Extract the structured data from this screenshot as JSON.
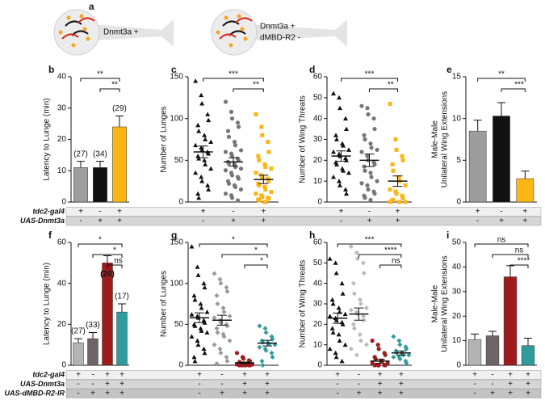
{
  "panel_a": {
    "label": "a",
    "cells": [
      {
        "lines": [
          "Dnmt3a +"
        ]
      },
      {
        "lines": [
          "Dnmt3a +",
          "dMBD-R2 -"
        ]
      }
    ]
  },
  "genotype_labels": [
    [
      "tdc2-gal4",
      "UAS-Dnmt3a"
    ],
    [
      "tdc2-gal4",
      "UAS-Dnmt3a",
      "UAS-dMBD-R2-IR"
    ]
  ],
  "chart_data": [
    {
      "panel": "b",
      "type": "bar",
      "ylabel": "Latency to Lunge (min)",
      "ylim": [
        0,
        40
      ],
      "yticks": [
        0,
        10,
        20,
        30,
        40
      ],
      "values": [
        11,
        11,
        24
      ],
      "errors": [
        2,
        2,
        3.5
      ],
      "colors": [
        "#9d9d9d",
        "#111111",
        "#fbb615"
      ],
      "n_labels": [
        "(27)",
        "(34)",
        "(29)"
      ],
      "comparisons": [
        {
          "pair": [
            0,
            2
          ],
          "label": "**"
        },
        {
          "pair": [
            1,
            2
          ],
          "label": "**"
        }
      ],
      "genotype": [
        [
          "+",
          "-",
          "+"
        ],
        [
          "-",
          "+",
          "+"
        ]
      ]
    },
    {
      "panel": "c",
      "type": "scatter",
      "ylabel": "Number of Lunges",
      "ylim": [
        0,
        150
      ],
      "yticks": [
        0,
        50,
        100,
        150
      ],
      "series": [
        {
          "marker": "triangle",
          "color": "#111111",
          "mean": 60,
          "sem": 7,
          "values": [
            145,
            128,
            118,
            105,
            98,
            92,
            85,
            80,
            75,
            72,
            68,
            65,
            62,
            60,
            58,
            55,
            52,
            50,
            45,
            40,
            35,
            30,
            25,
            20,
            15,
            10,
            5
          ]
        },
        {
          "marker": "circle",
          "color": "#777777",
          "mean": 48,
          "sem": 5,
          "values": [
            120,
            108,
            100,
            95,
            90,
            85,
            78,
            72,
            68,
            62,
            60,
            58,
            55,
            52,
            50,
            48,
            46,
            45,
            42,
            40,
            38,
            35,
            32,
            30,
            28,
            25,
            22,
            20,
            18,
            15,
            10,
            8,
            5,
            2
          ]
        },
        {
          "marker": "square",
          "color": "#fbb615",
          "mean": 27,
          "sem": 5,
          "values": [
            105,
            90,
            80,
            72,
            60,
            55,
            50,
            45,
            42,
            40,
            35,
            32,
            30,
            28,
            25,
            22,
            20,
            18,
            15,
            12,
            10,
            8,
            6,
            5,
            4,
            3,
            2,
            0,
            0
          ]
        }
      ],
      "comparisons": [
        {
          "pair": [
            0,
            2
          ],
          "label": "***"
        },
        {
          "pair": [
            1,
            2
          ],
          "label": "**"
        }
      ],
      "genotype": [
        [
          "+",
          "-",
          "+"
        ],
        [
          "-",
          "+",
          "+"
        ]
      ]
    },
    {
      "panel": "d",
      "type": "scatter",
      "ylabel": "Number of Wing Threats",
      "ylim": [
        0,
        60
      ],
      "yticks": [
        0,
        10,
        20,
        30,
        40,
        50,
        60
      ],
      "series": [
        {
          "marker": "triangle",
          "color": "#111111",
          "mean": 22,
          "sem": 2.5,
          "values": [
            52,
            50,
            45,
            40,
            35,
            32,
            30,
            28,
            27,
            25,
            24,
            23,
            22,
            21,
            20,
            19,
            18,
            16,
            15,
            14,
            12,
            10,
            8,
            6,
            4
          ]
        },
        {
          "marker": "circle",
          "color": "#777777",
          "mean": 20,
          "sem": 3,
          "values": [
            46,
            45,
            42,
            40,
            35,
            32,
            30,
            28,
            26,
            25,
            24,
            22,
            20,
            19,
            18,
            17,
            15,
            14,
            12,
            10,
            9,
            8,
            6,
            5,
            4,
            3,
            2,
            1
          ]
        },
        {
          "marker": "square",
          "color": "#fbb615",
          "mean": 10,
          "sem": 2.5,
          "values": [
            47,
            30,
            25,
            22,
            20,
            18,
            15,
            12,
            10,
            8,
            6,
            5,
            4,
            3,
            2,
            1,
            1,
            0,
            0,
            0,
            0
          ]
        }
      ],
      "comparisons": [
        {
          "pair": [
            0,
            2
          ],
          "label": "***"
        },
        {
          "pair": [
            1,
            2
          ],
          "label": "**"
        }
      ],
      "genotype": [
        [
          "+",
          "-",
          "+"
        ],
        [
          "-",
          "+",
          "+"
        ]
      ]
    },
    {
      "panel": "e",
      "type": "bar",
      "ylabel": [
        "Male-Male",
        "Unilateral Wing Extensions"
      ],
      "ylim": [
        0,
        15
      ],
      "yticks": [
        0,
        5,
        10,
        15
      ],
      "values": [
        8.5,
        10.3,
        2.8
      ],
      "errors": [
        1.3,
        1.6,
        0.9
      ],
      "colors": [
        "#9d9d9d",
        "#111111",
        "#fbb615"
      ],
      "comparisons": [
        {
          "pair": [
            0,
            2
          ],
          "label": "**"
        },
        {
          "pair": [
            1,
            2
          ],
          "label": "***"
        }
      ],
      "genotype": [
        [
          "+",
          "-",
          "+"
        ],
        [
          "-",
          "+",
          "+"
        ]
      ]
    },
    {
      "panel": "f",
      "type": "bar",
      "ylabel": "Latency to Lunge (min)",
      "ylim": [
        0,
        60
      ],
      "yticks": [
        0,
        20,
        40,
        60
      ],
      "values": [
        11,
        13,
        50,
        26
      ],
      "errors": [
        2,
        3,
        3.5,
        4
      ],
      "colors": [
        "#b3b3b3",
        "#6e6466",
        "#9e1b1e",
        "#2e9c9c"
      ],
      "n_labels": [
        "(27)",
        "(33)",
        "(20)",
        "(17)"
      ],
      "comparisons": [
        {
          "pair": [
            0,
            3
          ],
          "label": "*"
        },
        {
          "pair": [
            1,
            3
          ],
          "label": "*"
        },
        {
          "pair": [
            2,
            3
          ],
          "label": "ns"
        }
      ],
      "genotype": [
        [
          "+",
          "-",
          "+",
          "+"
        ],
        [
          "-",
          "-",
          "+",
          "+"
        ],
        [
          "-",
          "+",
          "+",
          "+"
        ]
      ]
    },
    {
      "panel": "g",
      "type": "scatter",
      "ylabel": "Number of Lunges",
      "ylim": [
        0,
        150
      ],
      "yticks": [
        0,
        50,
        100,
        150
      ],
      "series": [
        {
          "marker": "triangle",
          "color": "#111111",
          "mean": 58,
          "sem": 6,
          "values": [
            145,
            120,
            110,
            100,
            95,
            85,
            80,
            75,
            70,
            65,
            62,
            60,
            58,
            55,
            52,
            50,
            48,
            45,
            42,
            40,
            35,
            30,
            25,
            20,
            15,
            10,
            5
          ]
        },
        {
          "marker": "diamond",
          "color": "#999999",
          "mean": 55,
          "sem": 6,
          "values": [
            112,
            105,
            100,
            95,
            90,
            85,
            75,
            70,
            65,
            60,
            58,
            55,
            52,
            50,
            48,
            45,
            40,
            38,
            35,
            30,
            25,
            20,
            15,
            10,
            5,
            2
          ]
        },
        {
          "marker": "circle",
          "color": "#9e1b1e",
          "mean": 3,
          "sem": 1,
          "values": [
            15,
            10,
            8,
            6,
            5,
            4,
            3,
            2,
            2,
            1,
            1,
            0,
            0,
            0,
            0,
            0,
            0,
            0
          ]
        },
        {
          "marker": "diamond",
          "color": "#2e9c9c",
          "mean": 27,
          "sem": 3.5,
          "values": [
            48,
            45,
            40,
            35,
            32,
            30,
            28,
            27,
            26,
            25,
            22,
            20,
            18,
            15,
            10,
            5,
            0
          ]
        }
      ],
      "comparisons": [
        {
          "pair": [
            0,
            3
          ],
          "label": "*"
        },
        {
          "pair": [
            1,
            3
          ],
          "label": "*"
        },
        {
          "pair": [
            2,
            3
          ],
          "label": "*"
        }
      ],
      "genotype": [
        [
          "+",
          "-",
          "+",
          "+"
        ],
        [
          "-",
          "-",
          "+",
          "+"
        ],
        [
          "-",
          "+",
          "+",
          "+"
        ]
      ]
    },
    {
      "panel": "h",
      "type": "scatter",
      "ylabel": "Number of Wing Threats",
      "ylim": [
        0,
        60
      ],
      "yticks": [
        0,
        10,
        20,
        30,
        40,
        50,
        60
      ],
      "series": [
        {
          "marker": "triangle",
          "color": "#111111",
          "mean": 23,
          "sem": 2.5,
          "values": [
            52,
            50,
            45,
            40,
            35,
            32,
            30,
            28,
            26,
            25,
            24,
            23,
            22,
            21,
            20,
            18,
            16,
            15,
            12,
            10,
            8,
            6,
            4,
            2
          ]
        },
        {
          "marker": "diamond",
          "color": "#bbbbbb",
          "mean": 25,
          "sem": 3,
          "values": [
            58,
            55,
            52,
            50,
            45,
            40,
            35,
            32,
            30,
            28,
            27,
            26,
            25,
            24,
            22,
            20,
            18,
            15,
            12,
            10,
            8,
            5
          ]
        },
        {
          "marker": "circle",
          "color": "#9e1b1e",
          "mean": 2,
          "sem": 1,
          "values": [
            12,
            10,
            8,
            6,
            5,
            4,
            3,
            2,
            2,
            1,
            1,
            0,
            0,
            0,
            0,
            0
          ]
        },
        {
          "marker": "diamond",
          "color": "#2e9c9c",
          "mean": 6,
          "sem": 1,
          "values": [
            14,
            12,
            10,
            9,
            8,
            7,
            6,
            6,
            5,
            5,
            4,
            4,
            3,
            2,
            1
          ]
        }
      ],
      "comparisons": [
        {
          "pair": [
            0,
            3
          ],
          "label": "***"
        },
        {
          "pair": [
            1,
            3
          ],
          "label": "****"
        },
        {
          "pair": [
            2,
            3
          ],
          "label": "ns"
        }
      ],
      "genotype": [
        [
          "+",
          "-",
          "+",
          "+"
        ],
        [
          "-",
          "-",
          "+",
          "+"
        ],
        [
          "-",
          "+",
          "+",
          "+"
        ]
      ]
    },
    {
      "panel": "i",
      "type": "bar",
      "ylabel": [
        "Male-Male",
        "Unilateral Wing Extensions"
      ],
      "ylim": [
        0,
        50
      ],
      "yticks": [
        0,
        10,
        20,
        30,
        40,
        50
      ],
      "values": [
        10.5,
        12,
        36,
        8
      ],
      "errors": [
        2.2,
        1.8,
        4.5,
        3
      ],
      "colors": [
        "#b3b3b3",
        "#6e6466",
        "#9e1b1e",
        "#2e9c9c"
      ],
      "comparisons": [
        {
          "pair": [
            0,
            3
          ],
          "label": "ns"
        },
        {
          "pair": [
            1,
            3
          ],
          "label": "ns"
        },
        {
          "pair": [
            2,
            3
          ],
          "label": "****"
        }
      ],
      "genotype": [
        [
          "+",
          "-",
          "+",
          "+"
        ],
        [
          "-",
          "-",
          "+",
          "+"
        ],
        [
          "-",
          "+",
          "+",
          "+"
        ]
      ]
    }
  ]
}
